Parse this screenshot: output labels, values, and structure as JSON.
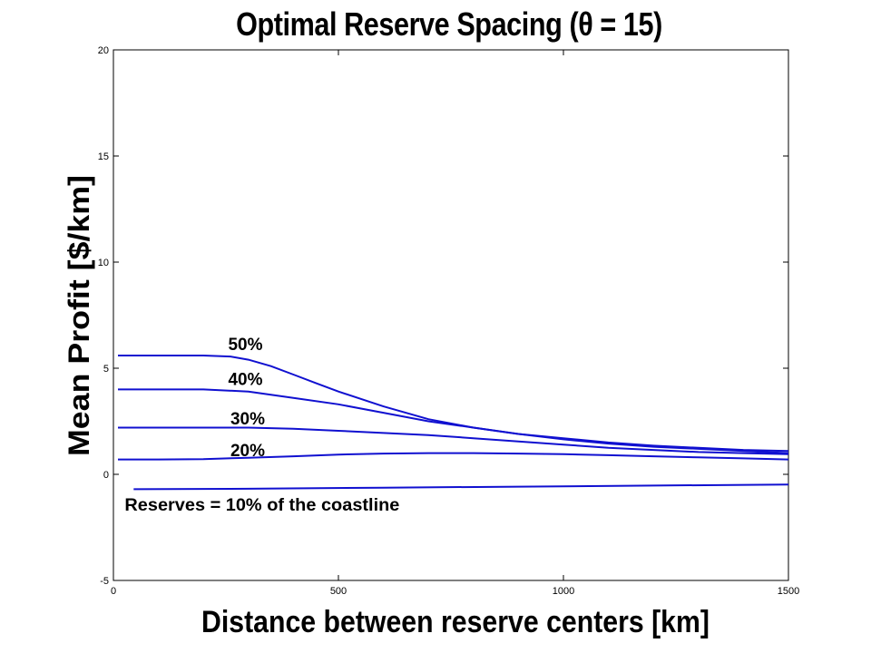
{
  "chart_data": {
    "type": "line",
    "title": "Optimal Reserve Spacing (θ = 15)",
    "xlabel": "Distance between reserve centers [km]",
    "ylabel": "Mean Profit [$/km]",
    "xlim": [
      0,
      1500
    ],
    "ylim": [
      -5,
      20
    ],
    "xticks": [
      0,
      500,
      1000,
      1500
    ],
    "yticks": [
      -5,
      0,
      5,
      10,
      15,
      20
    ],
    "grid": false,
    "line_color": "#1010d0",
    "series": [
      {
        "name": "50%",
        "x": [
          10,
          100,
          200,
          260,
          300,
          350,
          400,
          450,
          500,
          600,
          700,
          800,
          900,
          1000,
          1100,
          1200,
          1300,
          1400,
          1500
        ],
        "y": [
          5.6,
          5.6,
          5.6,
          5.55,
          5.4,
          5.1,
          4.7,
          4.3,
          3.9,
          3.2,
          2.6,
          2.2,
          1.9,
          1.7,
          1.5,
          1.35,
          1.25,
          1.15,
          1.1
        ]
      },
      {
        "name": "40%",
        "x": [
          10,
          100,
          200,
          300,
          350,
          400,
          500,
          600,
          700,
          800,
          900,
          1000,
          1100,
          1200,
          1300,
          1400,
          1500
        ],
        "y": [
          4.0,
          4.0,
          4.0,
          3.9,
          3.75,
          3.6,
          3.3,
          2.9,
          2.5,
          2.2,
          1.9,
          1.65,
          1.45,
          1.3,
          1.2,
          1.1,
          1.0
        ]
      },
      {
        "name": "30%",
        "x": [
          10,
          100,
          200,
          300,
          400,
          500,
          600,
          700,
          800,
          900,
          1000,
          1100,
          1200,
          1300,
          1400,
          1500
        ],
        "y": [
          2.2,
          2.2,
          2.2,
          2.2,
          2.15,
          2.05,
          1.95,
          1.85,
          1.7,
          1.55,
          1.4,
          1.25,
          1.15,
          1.05,
          1.0,
          0.95
        ]
      },
      {
        "name": "20%",
        "x": [
          10,
          100,
          200,
          300,
          400,
          500,
          600,
          700,
          800,
          900,
          1000,
          1100,
          1200,
          1300,
          1400,
          1500
        ],
        "y": [
          0.7,
          0.7,
          0.72,
          0.78,
          0.85,
          0.93,
          0.98,
          1.0,
          1.0,
          0.98,
          0.95,
          0.9,
          0.85,
          0.8,
          0.75,
          0.7
        ]
      },
      {
        "name": "Reserves = 10% of the coastline",
        "x": [
          45,
          300,
          600,
          900,
          1200,
          1500
        ],
        "y": [
          -0.7,
          -0.68,
          -0.63,
          -0.58,
          -0.53,
          -0.48
        ]
      }
    ],
    "labels": [
      {
        "text": "50%",
        "x": 255,
        "y": 5.85
      },
      {
        "text": "40%",
        "x": 255,
        "y": 4.2
      },
      {
        "text": "30%",
        "x": 260,
        "y": 2.35
      },
      {
        "text": "20%",
        "x": 260,
        "y": 0.85
      },
      {
        "text": "Reserves = 10% of the coastline",
        "x": 25,
        "y": -1.7
      }
    ]
  }
}
